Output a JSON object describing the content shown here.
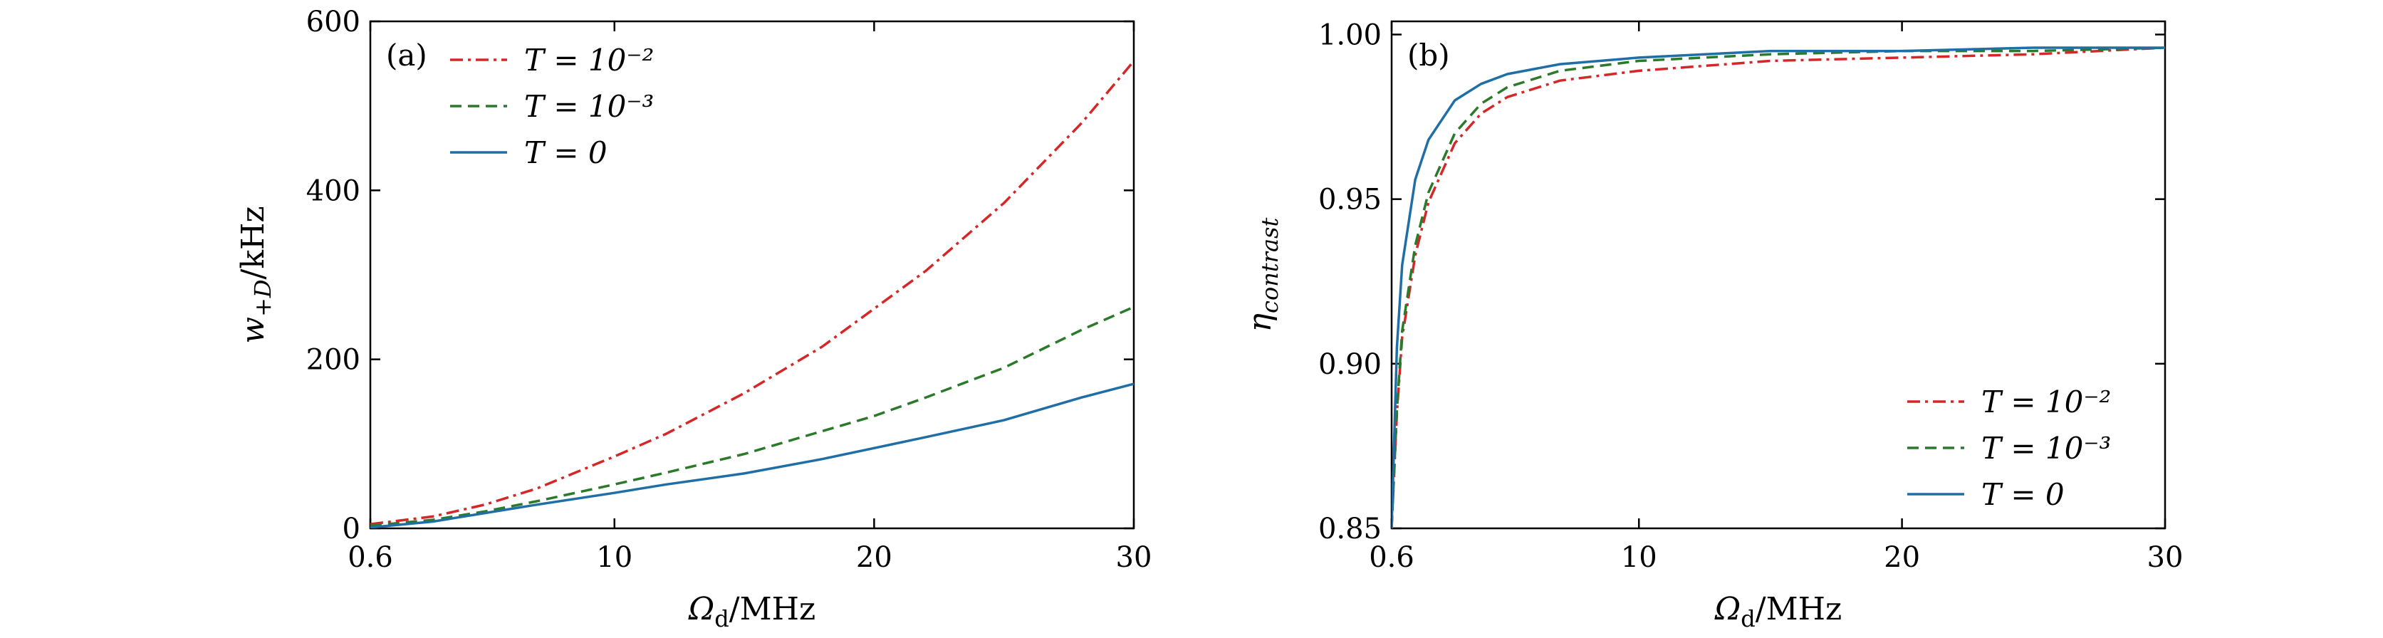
{
  "chart_data": [
    {
      "type": "line",
      "panel_tag": "(a)",
      "xlabel": "Ω",
      "xlabel_sub": "d",
      "xlabel_unit": "/MHz",
      "ylabel": "w",
      "ylabel_sub": "+D",
      "ylabel_unit": "/kHz",
      "x_ticks": [
        "0.6",
        "10",
        "20",
        "30"
      ],
      "y_ticks": [
        "0",
        "200",
        "400",
        "600"
      ],
      "xlim": [
        0.6,
        30
      ],
      "ylim": [
        0,
        600
      ],
      "legend_position": "top-left",
      "series": [
        {
          "name": "T = 10⁻²",
          "color": "#d62728",
          "dash": "dashdot",
          "x": [
            0.6,
            3,
            5,
            7,
            10,
            12,
            15,
            18,
            20,
            22,
            25,
            28,
            30
          ],
          "y": [
            5,
            14,
            28,
            47,
            85,
            112,
            160,
            215,
            260,
            305,
            385,
            480,
            553
          ]
        },
        {
          "name": "T = 10⁻³",
          "color": "#2a7a2a",
          "dash": "dashed",
          "x": [
            0.6,
            3,
            5,
            7,
            10,
            12,
            15,
            18,
            20,
            22,
            25,
            28,
            30
          ],
          "y": [
            3,
            10,
            20,
            32,
            52,
            66,
            88,
            115,
            133,
            155,
            190,
            235,
            262
          ]
        },
        {
          "name": "T = 0",
          "color": "#1f6fa6",
          "dash": "solid",
          "x": [
            0.6,
            3,
            5,
            7,
            10,
            12,
            15,
            18,
            20,
            22,
            25,
            28,
            30
          ],
          "y": [
            1,
            8,
            18,
            28,
            42,
            52,
            65,
            82,
            95,
            108,
            128,
            155,
            171
          ]
        }
      ]
    },
    {
      "type": "line",
      "panel_tag": "(b)",
      "xlabel": "Ω",
      "xlabel_sub": "d",
      "xlabel_unit": "/MHz",
      "ylabel": "η",
      "ylabel_sub": "contrast",
      "x_ticks": [
        "0.6",
        "10",
        "20",
        "30"
      ],
      "y_ticks": [
        "0.85",
        "0.90",
        "0.95",
        "1.00"
      ],
      "xlim": [
        0.6,
        30
      ],
      "ylim": [
        0.85,
        1.004
      ],
      "legend_position": "bottom-right",
      "series": [
        {
          "name": "T = 10⁻²",
          "color": "#d62728",
          "dash": "dashdot",
          "x": [
            0.6,
            0.8,
            1.0,
            1.5,
            2,
            3,
            4,
            5,
            7,
            10,
            15,
            20,
            25,
            30
          ],
          "y": [
            0.85,
            0.885,
            0.908,
            0.933,
            0.949,
            0.967,
            0.976,
            0.981,
            0.986,
            0.989,
            0.992,
            0.993,
            0.994,
            0.996
          ]
        },
        {
          "name": "T = 10⁻³",
          "color": "#2a7a2a",
          "dash": "dashed",
          "x": [
            0.6,
            0.8,
            1.0,
            1.5,
            2,
            3,
            4,
            5,
            7,
            10,
            15,
            20,
            25,
            30
          ],
          "y": [
            0.85,
            0.886,
            0.91,
            0.936,
            0.952,
            0.97,
            0.979,
            0.984,
            0.989,
            0.992,
            0.994,
            0.995,
            0.995,
            0.996
          ]
        },
        {
          "name": "T = 0",
          "color": "#1f6fa6",
          "dash": "solid",
          "x": [
            0.6,
            0.8,
            1.0,
            1.5,
            2,
            3,
            4,
            5,
            7,
            10,
            15,
            20,
            25,
            30
          ],
          "y": [
            0.85,
            0.905,
            0.93,
            0.956,
            0.968,
            0.98,
            0.985,
            0.988,
            0.991,
            0.993,
            0.995,
            0.995,
            0.996,
            0.996
          ]
        }
      ]
    }
  ]
}
